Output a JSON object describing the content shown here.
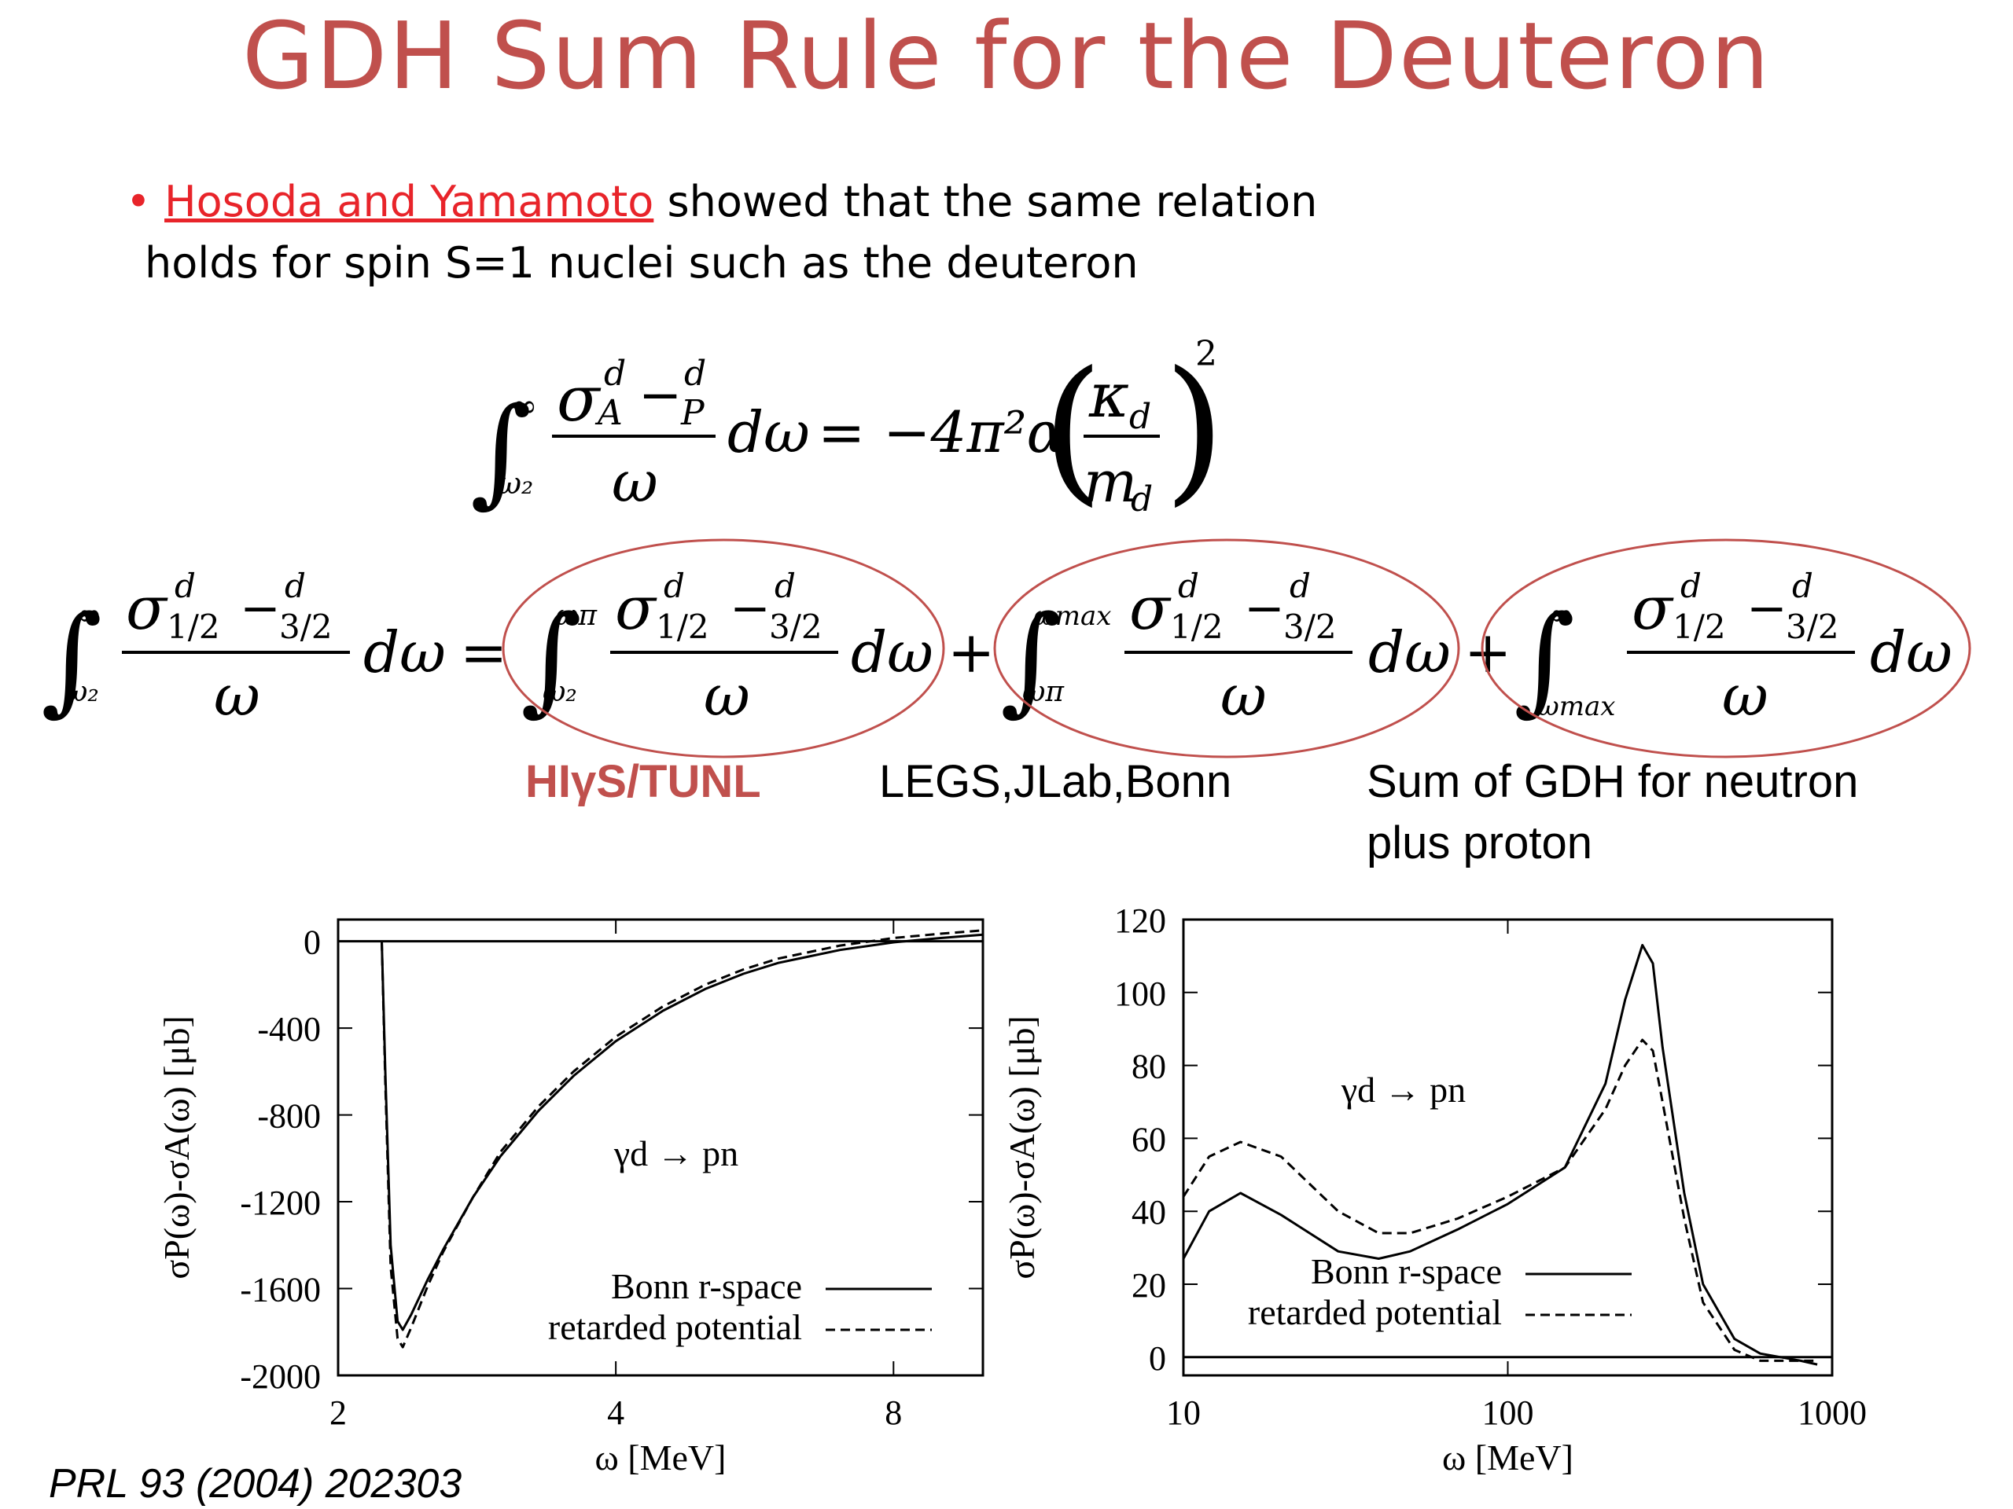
{
  "slide": {
    "title": "GDH Sum Rule for the Deuteron",
    "bullet": {
      "dot": "•",
      "ref_text": "Hosoda and Yamamoto",
      "text1": " showed that the same relation",
      "text2": "holds for spin S=1 nuclei such as the deuteron"
    },
    "labels": {
      "higs": "HIγS/TUNL",
      "legs": "LEGS,JLab,Bonn",
      "sum_line1": "Sum of GDH for neutron",
      "sum_line2": "plus proton"
    },
    "footer": "PRL 93 (2004) 202303",
    "colors": {
      "title": "#c0504d",
      "ref": "#e8242a",
      "ellipse": "#c0504d"
    }
  },
  "equations": {
    "eq1": {
      "int_upper": "∞",
      "int_lower": "ω₂",
      "num": "σ",
      "sub_a": "A",
      "sup_d": "d",
      "minus": "−",
      "sub_p": "P",
      "den": "ω",
      "dw": "dω",
      "rhs": "= −4π²α",
      "kappa": "κ",
      "m": "m",
      "sub_d": "d",
      "pow": "2"
    },
    "eq2": {
      "sig": "σ",
      "half": "1/2",
      "threehalf": "3/2",
      "minus": "−",
      "sup_d": "d",
      "om": "ω",
      "dw": "dω",
      "eq": "=",
      "plus": "+",
      "lims": [
        "ω₂",
        "∞",
        "ω₂",
        "ωπ",
        "ωπ",
        "ωmax",
        "ωmax",
        "∞"
      ]
    }
  },
  "chart_data": [
    {
      "type": "line",
      "xlabel": "ω [MeV]",
      "ylabel": "σP(ω)-σA(ω) [μb]",
      "xscale": "log",
      "xlim": [
        2,
        10
      ],
      "ylim": [
        -2000,
        100
      ],
      "xticks": [
        "2",
        "4",
        "8"
      ],
      "xtick_values": [
        2,
        4,
        8
      ],
      "yticks": [
        "0",
        "-400",
        "-800",
        "-1200",
        "-1600",
        "-2000"
      ],
      "ytick_values": [
        0,
        -400,
        -800,
        -1200,
        -1600,
        -2000
      ],
      "annotation": "γd → pn",
      "legend_position": "bottom-right",
      "grid": false,
      "series": [
        {
          "name": "Bonn r-space",
          "style": "solid",
          "x": [
            2.23,
            2.25,
            2.28,
            2.32,
            2.35,
            2.4,
            2.5,
            2.6,
            2.8,
            3.0,
            3.3,
            3.6,
            4.0,
            4.5,
            5.0,
            5.5,
            6.0,
            7.0,
            8.0,
            9.0,
            10.0
          ],
          "y": [
            0,
            -600,
            -1400,
            -1750,
            -1790,
            -1720,
            -1560,
            -1420,
            -1180,
            -990,
            -780,
            -620,
            -460,
            -320,
            -220,
            -150,
            -100,
            -40,
            -5,
            15,
            30
          ]
        },
        {
          "name": "retarded potential",
          "style": "dashed",
          "x": [
            2.23,
            2.25,
            2.28,
            2.32,
            2.35,
            2.4,
            2.5,
            2.6,
            2.8,
            3.0,
            3.3,
            3.6,
            4.0,
            4.5,
            5.0,
            5.5,
            6.0,
            7.0,
            8.0,
            9.0,
            10.0
          ],
          "y": [
            0,
            -650,
            -1500,
            -1830,
            -1870,
            -1780,
            -1590,
            -1430,
            -1180,
            -970,
            -760,
            -600,
            -440,
            -300,
            -200,
            -130,
            -80,
            -20,
            15,
            35,
            50
          ]
        }
      ]
    },
    {
      "type": "line",
      "xlabel": "ω [MeV]",
      "ylabel": "σP(ω)-σA(ω) [μb]",
      "xscale": "log",
      "xlim": [
        10,
        1000
      ],
      "ylim": [
        -5,
        120
      ],
      "xticks": [
        "10",
        "100",
        "1000"
      ],
      "xtick_values": [
        10,
        100,
        1000
      ],
      "yticks": [
        "0",
        "20",
        "40",
        "60",
        "80",
        "100",
        "120"
      ],
      "ytick_values": [
        0,
        20,
        40,
        60,
        80,
        100,
        120
      ],
      "annotation": "γd → pn",
      "legend_position": "bottom-center",
      "grid": false,
      "series": [
        {
          "name": "Bonn r-space",
          "style": "solid",
          "x": [
            10,
            12,
            15,
            20,
            30,
            40,
            50,
            70,
            100,
            150,
            200,
            230,
            260,
            280,
            300,
            350,
            400,
            500,
            600,
            800,
            900
          ],
          "y": [
            27,
            40,
            45,
            39,
            29,
            27,
            29,
            35,
            42,
            52,
            75,
            98,
            113,
            108,
            85,
            45,
            20,
            5,
            1,
            -1,
            -2
          ]
        },
        {
          "name": "retarded potential",
          "style": "dashed",
          "x": [
            10,
            12,
            15,
            20,
            30,
            40,
            50,
            70,
            100,
            150,
            200,
            230,
            260,
            280,
            300,
            350,
            400,
            500,
            600,
            800,
            900
          ],
          "y": [
            44,
            55,
            59,
            55,
            40,
            34,
            34,
            38,
            44,
            52,
            68,
            80,
            87,
            84,
            70,
            38,
            15,
            2,
            -1,
            -1,
            -1
          ]
        }
      ]
    }
  ]
}
